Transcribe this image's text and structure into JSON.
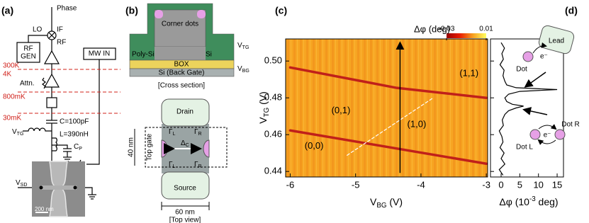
{
  "panel_a": {
    "label": "(a)",
    "phase": "Phase",
    "if": "IF",
    "lo": "LO",
    "rf": "RF",
    "rf_gen": [
      "RF",
      "GEN"
    ],
    "mw_in": "MW IN",
    "t300": "300K",
    "t4": "4K",
    "attn": "Attn.",
    "t800": "800mK",
    "t30": "30mK",
    "cap": "C=100pF",
    "ind": "L=390nH",
    "vtg": {
      "main": "V",
      "sub": "TG"
    },
    "cp": {
      "main": "C",
      "sub": "P"
    },
    "vsd": {
      "main": "V",
      "sub": "SD"
    },
    "scale": "200 nm"
  },
  "panel_b": {
    "label": "(b)",
    "corner_dots": "Corner dots",
    "poly_si": "Poly-Si",
    "si": "Si",
    "vtg": {
      "main": "V",
      "sub": "TG"
    },
    "box": "BOX",
    "vbg": {
      "main": "V",
      "sub": "BG"
    },
    "back_gate": "Si (Back Gate)",
    "cross_section": "[Cross section]",
    "drain": "Drain",
    "width_40": "40 nm",
    "top_gate": "Top gate",
    "delta": {
      "main": "Δ",
      "sub": "C"
    },
    "gl": {
      "main": "Γ",
      "sub": "L"
    },
    "gr": {
      "main": "Γ",
      "sub": "R"
    },
    "source": "Source",
    "width_60": "60 nm",
    "top_view": "[Top view]"
  },
  "chart_data": [
    {
      "type": "line",
      "panel_label": "(c)",
      "x_label": [
        "V",
        "BG",
        " (V)"
      ],
      "y_label": [
        "V",
        "TG",
        " (V)"
      ],
      "xlim": [
        -6.07,
        -2.98
      ],
      "ylim": [
        0.437,
        0.512
      ],
      "xticks": [
        -6,
        -5,
        -4,
        -3
      ],
      "yticks": [
        0.44,
        0.46,
        0.48,
        {
          "value": 0.5,
          "label": "0.50"
        }
      ],
      "colorbar": {
        "label": "Δφ (deg)",
        "clim": [
          -0.03,
          0.01
        ],
        "ticks": [
          -0.03,
          0.01
        ],
        "colors": [
          "#9a0000",
          "#e81c00",
          "#f7a020",
          "#ffff60"
        ]
      },
      "series": [
        {
          "color": "#c0201a",
          "x": [
            -6,
            -4.37,
            -3
          ],
          "values": [
            0.4965,
            0.4854,
            0.48
          ]
        },
        {
          "color": "#c0201a",
          "x": [
            -6,
            -3
          ],
          "values": [
            0.4623,
            0.4442
          ]
        },
        {
          "color": "#ffffff",
          "dash": true,
          "x": [
            -5.13,
            -3.83
          ],
          "values": [
            0.4488,
            0.4796
          ]
        }
      ],
      "arrow": {
        "x": -4.32,
        "y": [
          0.4392,
          0.5096
        ]
      },
      "annotations": [
        {
          "text": "(0,0)",
          "x": -5.78,
          "y": 0.4538
        },
        {
          "text": "(0,1)",
          "x": -5.37,
          "y": 0.473
        },
        {
          "text": "(1,0)",
          "x": -4.21,
          "y": 0.4654
        },
        {
          "text": "(1,1)",
          "x": -3.41,
          "y": 0.4931
        }
      ]
    },
    {
      "type": "line",
      "panel_label": "(d)",
      "x_label": [
        "Δφ (10",
        "-3",
        " deg)"
      ],
      "ylim": [
        -2.85,
        16.7
      ],
      "yticks": [
        0,
        5,
        10,
        15
      ],
      "xlim": [
        0.437,
        0.512
      ],
      "xticks": [
        0.44,
        0.46,
        0.48,
        0.5
      ],
      "color": "#000000",
      "x": [
        0.438,
        0.441,
        0.444,
        0.447,
        0.45,
        0.453,
        0.456,
        0.459,
        0.462,
        0.465,
        0.468,
        0.471,
        0.473,
        0.4745,
        0.4755,
        0.4765,
        0.478,
        0.48,
        0.482,
        0.4835,
        0.4845,
        0.4855,
        0.487,
        0.489,
        0.492,
        0.495,
        0.498,
        0.501,
        0.504,
        0.507,
        0.51
      ],
      "values": [
        0.5,
        -0.5,
        1,
        0,
        0.8,
        -0.3,
        0.5,
        0.2,
        -0.5,
        0.6,
        0.3,
        1,
        2,
        4,
        6,
        3,
        1.5,
        1,
        2,
        5,
        15,
        4,
        1.5,
        1,
        0.5,
        0.8,
        -0.3,
        0.6,
        0.2,
        0.9,
        0
      ],
      "labels": {
        "lead": "Lead",
        "dot": "Dot",
        "e": "e⁻",
        "dot_l": "Dot L",
        "dot_r": "Dot R"
      }
    }
  ]
}
